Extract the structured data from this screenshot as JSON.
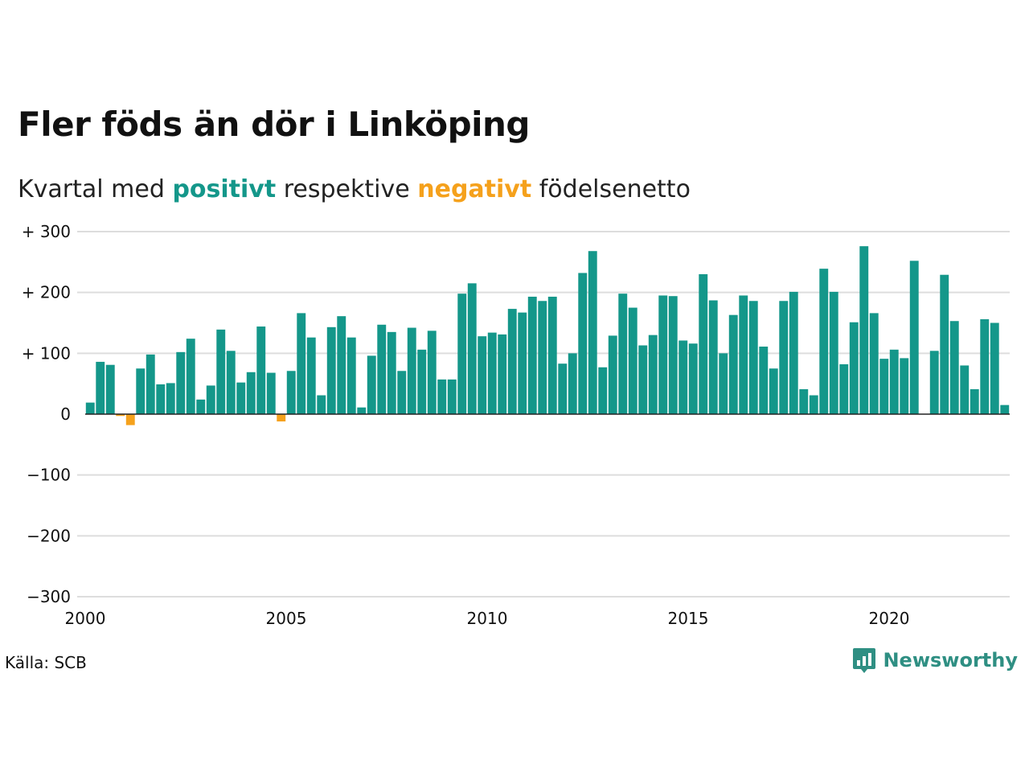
{
  "header": {
    "title": "Fler föds än dör i Linköping",
    "subtitle_pre": "Kvartal med",
    "subtitle_pos": "positivt",
    "subtitle_mid": "respektive",
    "subtitle_neg": "negativt",
    "subtitle_post": "födelsenetto"
  },
  "footer": {
    "source": "Källa: SCB",
    "brand": "Newsworthy",
    "brand_icon": "bar-chart-speech-icon"
  },
  "colors": {
    "positive": "#14978a",
    "negative": "#f5a11c",
    "grid": "#dddddd",
    "brand": "#2f8f83"
  },
  "chart_data": {
    "type": "bar",
    "x": [
      "2000Q1",
      "2000Q2",
      "2000Q3",
      "2000Q4",
      "2001Q1",
      "2001Q2",
      "2001Q3",
      "2001Q4",
      "2002Q1",
      "2002Q2",
      "2002Q3",
      "2002Q4",
      "2003Q1",
      "2003Q2",
      "2003Q3",
      "2003Q4",
      "2004Q1",
      "2004Q2",
      "2004Q3",
      "2004Q4",
      "2005Q1",
      "2005Q2",
      "2005Q3",
      "2005Q4",
      "2006Q1",
      "2006Q2",
      "2006Q3",
      "2006Q4",
      "2007Q1",
      "2007Q2",
      "2007Q3",
      "2007Q4",
      "2008Q1",
      "2008Q2",
      "2008Q3",
      "2008Q4",
      "2009Q1",
      "2009Q2",
      "2009Q3",
      "2009Q4",
      "2010Q1",
      "2010Q2",
      "2010Q3",
      "2010Q4",
      "2011Q1",
      "2011Q2",
      "2011Q3",
      "2011Q4",
      "2012Q1",
      "2012Q2",
      "2012Q3",
      "2012Q4",
      "2013Q1",
      "2013Q2",
      "2013Q3",
      "2013Q4",
      "2014Q1",
      "2014Q2",
      "2014Q3",
      "2014Q4",
      "2015Q1",
      "2015Q2",
      "2015Q3",
      "2015Q4",
      "2016Q1",
      "2016Q2",
      "2016Q3",
      "2016Q4",
      "2017Q1",
      "2017Q2",
      "2017Q3",
      "2017Q4",
      "2018Q1",
      "2018Q2",
      "2018Q3",
      "2018Q4",
      "2019Q1",
      "2019Q2",
      "2019Q3",
      "2019Q4",
      "2020Q1",
      "2020Q2",
      "2020Q3",
      "2020Q4",
      "2021Q1",
      "2021Q2",
      "2021Q3",
      "2021Q4",
      "2022Q1",
      "2022Q2",
      "2022Q3",
      "2022Q4"
    ],
    "values": [
      19,
      86,
      81,
      -3,
      -18,
      75,
      98,
      49,
      51,
      102,
      124,
      24,
      47,
      139,
      104,
      52,
      69,
      144,
      68,
      -12,
      71,
      166,
      126,
      31,
      143,
      161,
      126,
      11,
      96,
      147,
      135,
      71,
      142,
      106,
      137,
      57,
      57,
      198,
      215,
      128,
      134,
      131,
      173,
      167,
      193,
      186,
      193,
      83,
      100,
      232,
      268,
      77,
      129,
      198,
      175,
      113,
      130,
      195,
      194,
      121,
      116,
      230,
      187,
      100,
      163,
      195,
      186,
      111,
      75,
      186,
      201,
      41,
      31,
      239,
      201,
      82,
      151,
      276,
      166,
      91,
      106,
      92,
      252,
      0,
      104,
      229,
      153,
      80,
      41,
      156,
      150,
      15
    ],
    "sign_series": [
      {
        "name": "positivt",
        "color": "#14978a"
      },
      {
        "name": "negativt",
        "color": "#f5a11c"
      }
    ],
    "ylim": [
      -300,
      300
    ],
    "yticks": [
      -300,
      -200,
      -100,
      0,
      100,
      200,
      300
    ],
    "ytick_labels": [
      "−300",
      "−200",
      "−100",
      "0",
      "+ 100",
      "+ 200",
      "+ 300"
    ],
    "xlim": [
      2000,
      2023
    ],
    "xticks": [
      2000,
      2005,
      2010,
      2015,
      2020
    ],
    "xtick_labels": [
      "2000",
      "2005",
      "2010",
      "2015",
      "2020"
    ],
    "grid": true
  }
}
